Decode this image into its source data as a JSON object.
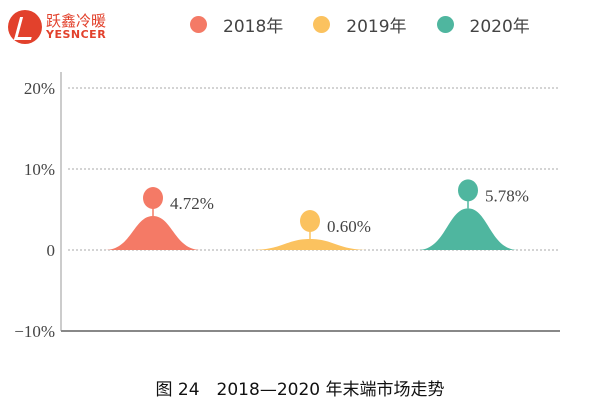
{
  "logo": {
    "cn": "跃鑫冷暖",
    "en": "YESNCER"
  },
  "caption": "图 24　2018—2020 年末端市场走势",
  "chart_data": {
    "type": "area",
    "title": "",
    "categories": [
      "2018年",
      "2019年",
      "2020年"
    ],
    "series": [
      {
        "name": "2018年",
        "value": 4.72,
        "label": "4.72%",
        "color": "#f47a66"
      },
      {
        "name": "2019年",
        "value": 0.6,
        "label": "0.60%",
        "color": "#fbc25f"
      },
      {
        "name": "2020年",
        "value": 5.78,
        "label": "5.78%",
        "color": "#4fb69f"
      }
    ],
    "yticks": [
      {
        "value": 20,
        "label": "20%"
      },
      {
        "value": 10,
        "label": "10%"
      },
      {
        "value": 0,
        "label": "0"
      },
      {
        "value": -10,
        "label": "-10%"
      }
    ],
    "ylim": [
      -10,
      20
    ],
    "grid": true,
    "legend": "top"
  }
}
